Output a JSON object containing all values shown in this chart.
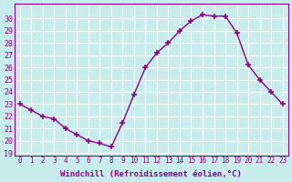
{
  "x": [
    0,
    1,
    2,
    3,
    4,
    5,
    6,
    7,
    8,
    9,
    10,
    11,
    12,
    13,
    14,
    15,
    16,
    17,
    18,
    19,
    20,
    21,
    22,
    23
  ],
  "y": [
    23,
    22.5,
    22,
    21.8,
    21,
    20.5,
    20,
    19.8,
    19.5,
    21.5,
    23.8,
    26,
    27.2,
    28,
    29,
    29.8,
    30.3,
    30.2,
    30.2,
    28.8,
    26.2,
    25,
    24,
    23
  ],
  "line_color": "#8b008b",
  "marker": "+",
  "marker_size": 4,
  "bg_color": "#c8ecec",
  "grid_color": "#ffffff",
  "xlabel": "Windchill (Refroidissement éolien,°C)",
  "ylabel_ticks": [
    19,
    20,
    21,
    22,
    23,
    24,
    25,
    26,
    27,
    28,
    29,
    30
  ],
  "xlim": [
    -0.5,
    23.5
  ],
  "ylim": [
    18.8,
    31.2
  ],
  "xlabel_color": "#8b008b",
  "tick_color": "#8b008b",
  "font_family": "monospace"
}
